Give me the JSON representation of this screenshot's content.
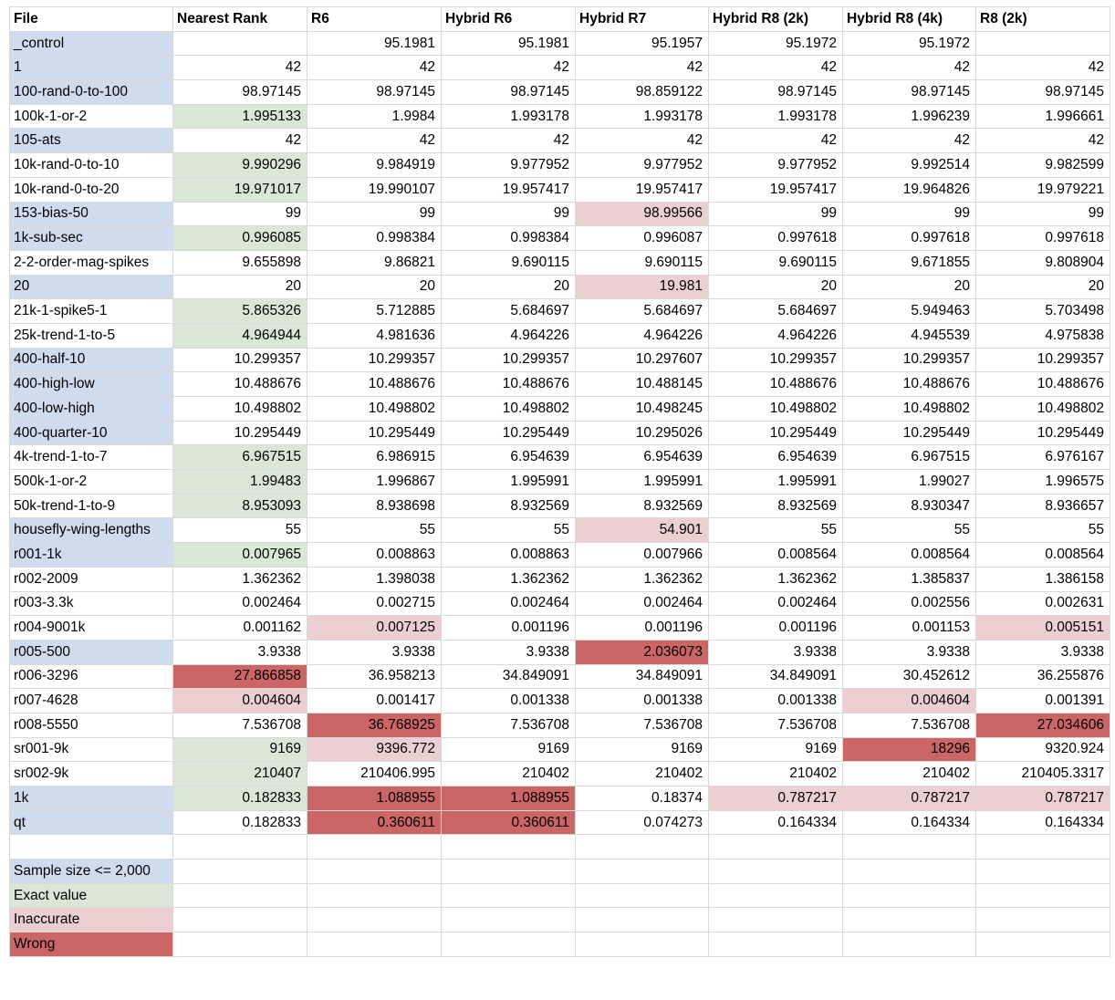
{
  "colors": {
    "blue": "#cfdcee",
    "green": "#d9e8d4",
    "pink": "#eccfd0",
    "red": "#cc6666"
  },
  "columns": [
    "File",
    "Nearest Rank",
    "R6",
    "Hybrid R6",
    "Hybrid R7",
    "Hybrid R8 (2k)",
    "Hybrid R8 (4k)",
    "R8 (2k)"
  ],
  "rows": [
    {
      "file": "_control",
      "file_color": "blue",
      "values": [
        "",
        "95.1981",
        "95.1981",
        "95.1957",
        "95.1972",
        "95.1972",
        ""
      ],
      "colors": [
        "",
        "",
        "",
        "",
        "",
        "",
        ""
      ]
    },
    {
      "file": "1",
      "file_color": "blue",
      "values": [
        "42",
        "42",
        "42",
        "42",
        "42",
        "42",
        "42"
      ],
      "colors": [
        "",
        "",
        "",
        "",
        "",
        "",
        ""
      ]
    },
    {
      "file": "100-rand-0-to-100",
      "file_color": "blue",
      "values": [
        "98.97145",
        "98.97145",
        "98.97145",
        "98.859122",
        "98.97145",
        "98.97145",
        "98.97145"
      ],
      "colors": [
        "",
        "",
        "",
        "",
        "",
        "",
        ""
      ]
    },
    {
      "file": "100k-1-or-2",
      "file_color": "",
      "values": [
        "1.995133",
        "1.9984",
        "1.993178",
        "1.993178",
        "1.993178",
        "1.996239",
        "1.996661"
      ],
      "colors": [
        "green",
        "",
        "",
        "",
        "",
        "",
        ""
      ]
    },
    {
      "file": "105-ats",
      "file_color": "blue",
      "values": [
        "42",
        "42",
        "42",
        "42",
        "42",
        "42",
        "42"
      ],
      "colors": [
        "",
        "",
        "",
        "",
        "",
        "",
        ""
      ]
    },
    {
      "file": "10k-rand-0-to-10",
      "file_color": "",
      "values": [
        "9.990296",
        "9.984919",
        "9.977952",
        "9.977952",
        "9.977952",
        "9.992514",
        "9.982599"
      ],
      "colors": [
        "green",
        "",
        "",
        "",
        "",
        "",
        ""
      ]
    },
    {
      "file": "10k-rand-0-to-20",
      "file_color": "",
      "values": [
        "19.971017",
        "19.990107",
        "19.957417",
        "19.957417",
        "19.957417",
        "19.964826",
        "19.979221"
      ],
      "colors": [
        "green",
        "",
        "",
        "",
        "",
        "",
        ""
      ]
    },
    {
      "file": "153-bias-50",
      "file_color": "blue",
      "values": [
        "99",
        "99",
        "99",
        "98.99566",
        "99",
        "99",
        "99"
      ],
      "colors": [
        "",
        "",
        "",
        "pink",
        "",
        "",
        ""
      ]
    },
    {
      "file": "1k-sub-sec",
      "file_color": "blue",
      "values": [
        "0.996085",
        "0.998384",
        "0.998384",
        "0.996087",
        "0.997618",
        "0.997618",
        "0.997618"
      ],
      "colors": [
        "green",
        "",
        "",
        "",
        "",
        "",
        ""
      ]
    },
    {
      "file": "2-2-order-mag-spikes",
      "file_color": "",
      "values": [
        "9.655898",
        "9.86821",
        "9.690115",
        "9.690115",
        "9.690115",
        "9.671855",
        "9.808904"
      ],
      "colors": [
        "",
        "",
        "",
        "",
        "",
        "",
        ""
      ]
    },
    {
      "file": "20",
      "file_color": "blue",
      "values": [
        "20",
        "20",
        "20",
        "19.981",
        "20",
        "20",
        "20"
      ],
      "colors": [
        "",
        "",
        "",
        "pink",
        "",
        "",
        ""
      ]
    },
    {
      "file": "21k-1-spike5-1",
      "file_color": "",
      "values": [
        "5.865326",
        "5.712885",
        "5.684697",
        "5.684697",
        "5.684697",
        "5.949463",
        "5.703498"
      ],
      "colors": [
        "green",
        "",
        "",
        "",
        "",
        "",
        ""
      ]
    },
    {
      "file": "25k-trend-1-to-5",
      "file_color": "",
      "values": [
        "4.964944",
        "4.981636",
        "4.964226",
        "4.964226",
        "4.964226",
        "4.945539",
        "4.975838"
      ],
      "colors": [
        "green",
        "",
        "",
        "",
        "",
        "",
        ""
      ]
    },
    {
      "file": "400-half-10",
      "file_color": "blue",
      "values": [
        "10.299357",
        "10.299357",
        "10.299357",
        "10.297607",
        "10.299357",
        "10.299357",
        "10.299357"
      ],
      "colors": [
        "",
        "",
        "",
        "",
        "",
        "",
        ""
      ]
    },
    {
      "file": "400-high-low",
      "file_color": "blue",
      "values": [
        "10.488676",
        "10.488676",
        "10.488676",
        "10.488145",
        "10.488676",
        "10.488676",
        "10.488676"
      ],
      "colors": [
        "",
        "",
        "",
        "",
        "",
        "",
        ""
      ]
    },
    {
      "file": "400-low-high",
      "file_color": "blue",
      "values": [
        "10.498802",
        "10.498802",
        "10.498802",
        "10.498245",
        "10.498802",
        "10.498802",
        "10.498802"
      ],
      "colors": [
        "",
        "",
        "",
        "",
        "",
        "",
        ""
      ]
    },
    {
      "file": "400-quarter-10",
      "file_color": "blue",
      "values": [
        "10.295449",
        "10.295449",
        "10.295449",
        "10.295026",
        "10.295449",
        "10.295449",
        "10.295449"
      ],
      "colors": [
        "",
        "",
        "",
        "",
        "",
        "",
        ""
      ]
    },
    {
      "file": "4k-trend-1-to-7",
      "file_color": "",
      "values": [
        "6.967515",
        "6.986915",
        "6.954639",
        "6.954639",
        "6.954639",
        "6.967515",
        "6.976167"
      ],
      "colors": [
        "green",
        "",
        "",
        "",
        "",
        "",
        ""
      ]
    },
    {
      "file": "500k-1-or-2",
      "file_color": "",
      "values": [
        "1.99483",
        "1.996867",
        "1.995991",
        "1.995991",
        "1.995991",
        "1.99027",
        "1.996575"
      ],
      "colors": [
        "green",
        "",
        "",
        "",
        "",
        "",
        ""
      ]
    },
    {
      "file": "50k-trend-1-to-9",
      "file_color": "",
      "values": [
        "8.953093",
        "8.938698",
        "8.932569",
        "8.932569",
        "8.932569",
        "8.930347",
        "8.936657"
      ],
      "colors": [
        "green",
        "",
        "",
        "",
        "",
        "",
        ""
      ]
    },
    {
      "file": "housefly-wing-lengths",
      "file_color": "blue",
      "values": [
        "55",
        "55",
        "55",
        "54.901",
        "55",
        "55",
        "55"
      ],
      "colors": [
        "",
        "",
        "",
        "pink",
        "",
        "",
        ""
      ]
    },
    {
      "file": "r001-1k",
      "file_color": "blue",
      "values": [
        "0.007965",
        "0.008863",
        "0.008863",
        "0.007966",
        "0.008564",
        "0.008564",
        "0.008564"
      ],
      "colors": [
        "green",
        "",
        "",
        "",
        "",
        "",
        ""
      ]
    },
    {
      "file": "r002-2009",
      "file_color": "",
      "values": [
        "1.362362",
        "1.398038",
        "1.362362",
        "1.362362",
        "1.362362",
        "1.385837",
        "1.386158"
      ],
      "colors": [
        "",
        "",
        "",
        "",
        "",
        "",
        ""
      ]
    },
    {
      "file": "r003-3.3k",
      "file_color": "",
      "values": [
        "0.002464",
        "0.002715",
        "0.002464",
        "0.002464",
        "0.002464",
        "0.002556",
        "0.002631"
      ],
      "colors": [
        "",
        "",
        "",
        "",
        "",
        "",
        ""
      ]
    },
    {
      "file": "r004-9001k",
      "file_color": "",
      "values": [
        "0.001162",
        "0.007125",
        "0.001196",
        "0.001196",
        "0.001196",
        "0.001153",
        "0.005151"
      ],
      "colors": [
        "",
        "pink",
        "",
        "",
        "",
        "",
        "pink"
      ]
    },
    {
      "file": "r005-500",
      "file_color": "blue",
      "values": [
        "3.9338",
        "3.9338",
        "3.9338",
        "2.036073",
        "3.9338",
        "3.9338",
        "3.9338"
      ],
      "colors": [
        "",
        "",
        "",
        "red",
        "",
        "",
        ""
      ]
    },
    {
      "file": "r006-3296",
      "file_color": "",
      "values": [
        "27.866858",
        "36.958213",
        "34.849091",
        "34.849091",
        "34.849091",
        "30.452612",
        "36.255876"
      ],
      "colors": [
        "red",
        "",
        "",
        "",
        "",
        "",
        ""
      ]
    },
    {
      "file": "r007-4628",
      "file_color": "",
      "values": [
        "0.004604",
        "0.001417",
        "0.001338",
        "0.001338",
        "0.001338",
        "0.004604",
        "0.001391"
      ],
      "colors": [
        "pink",
        "",
        "",
        "",
        "",
        "pink",
        ""
      ]
    },
    {
      "file": "r008-5550",
      "file_color": "",
      "values": [
        "7.536708",
        "36.768925",
        "7.536708",
        "7.536708",
        "7.536708",
        "7.536708",
        "27.034606"
      ],
      "colors": [
        "",
        "red",
        "",
        "",
        "",
        "",
        "red"
      ]
    },
    {
      "file": "sr001-9k",
      "file_color": "",
      "values": [
        "9169",
        "9396.772",
        "9169",
        "9169",
        "9169",
        "18296",
        "9320.924"
      ],
      "colors": [
        "green",
        "pink",
        "",
        "",
        "",
        "red",
        ""
      ]
    },
    {
      "file": "sr002-9k",
      "file_color": "",
      "values": [
        "210407",
        "210406.995",
        "210402",
        "210402",
        "210402",
        "210402",
        "210405.3317"
      ],
      "colors": [
        "green",
        "",
        "",
        "",
        "",
        "",
        ""
      ]
    },
    {
      "file": "1k",
      "file_color": "blue",
      "values": [
        "0.182833",
        "1.088955",
        "1.088955",
        "0.18374",
        "0.787217",
        "0.787217",
        "0.787217"
      ],
      "colors": [
        "green",
        "red",
        "red",
        "",
        "pink",
        "pink",
        "pink"
      ]
    },
    {
      "file": "qt",
      "file_color": "blue",
      "values": [
        "0.182833",
        "0.360611",
        "0.360611",
        "0.074273",
        "0.164334",
        "0.164334",
        "0.164334"
      ],
      "colors": [
        "",
        "red",
        "red",
        "",
        "",
        "",
        ""
      ]
    }
  ],
  "legend": [
    {
      "label": "Sample size <= 2,000",
      "color": "blue"
    },
    {
      "label": "Exact value",
      "color": "green"
    },
    {
      "label": "Inaccurate",
      "color": "pink"
    },
    {
      "label": "Wrong",
      "color": "red"
    }
  ],
  "chart_data": {
    "type": "table",
    "columns": [
      "File",
      "Nearest Rank",
      "R6",
      "Hybrid R6",
      "Hybrid R7",
      "Hybrid R8 (2k)",
      "Hybrid R8 (4k)",
      "R8 (2k)"
    ],
    "legend": [
      "Sample size <= 2,000",
      "Exact value",
      "Inaccurate",
      "Wrong"
    ]
  }
}
